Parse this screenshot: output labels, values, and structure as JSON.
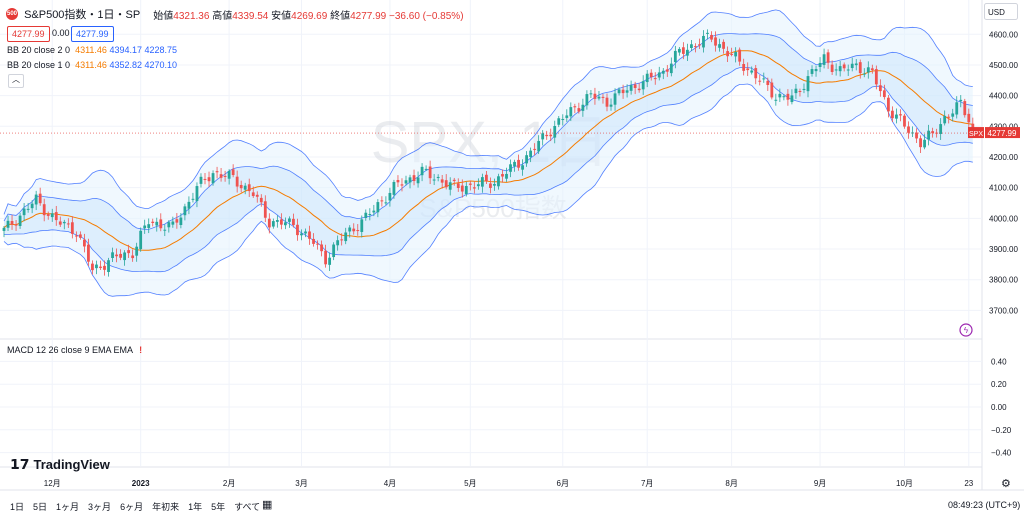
{
  "header": {
    "badge": "500",
    "symbol": "S&P500指数・1日・SP",
    "open_label": "始値",
    "open": "4321.36",
    "high_label": "高値",
    "high": "4339.54",
    "low_label": "安値",
    "low": "4269.69",
    "close_label": "終値",
    "close": "4277.99",
    "change": "−36.60 (−0.85%)",
    "bid": "4277.99",
    "spread": "0.00",
    "ask": "4277.99"
  },
  "indicators": [
    {
      "label": "BB 20 close 2 0",
      "basis": "4311.46",
      "upper": "4394.17",
      "lower": "4228.75"
    },
    {
      "label": "BB 20 close 1 0",
      "basis": "4311.46",
      "upper": "4352.82",
      "lower": "4270.10"
    }
  ],
  "collapse_icon": "chevron-up-icon",
  "watermark": {
    "symbol": "SPX, 1日",
    "name": "S&P500指数"
  },
  "macd_label": "MACD 12 26 close 9 EMA EMA",
  "macd_warning": "!",
  "brand": "TradingView",
  "currency": "USD",
  "price_tag": {
    "symbol": "SPX",
    "value": "4277.99"
  },
  "timeframes": [
    "1日",
    "5日",
    "1ヶ月",
    "3ヶ月",
    "6ヶ月",
    "年初来",
    "1年",
    "5年",
    "すべて"
  ],
  "clock": "08:49:23 (UTC+9)",
  "colors": {
    "up": "#26a69a",
    "down": "#ef5350",
    "band_outer": "#2962ff",
    "basis": "#f57c00",
    "fill": "#e3f2fd"
  },
  "chart_data": {
    "type": "candlestick",
    "title": "",
    "y_ticks": [
      3700,
      3800,
      3900,
      4000,
      4100,
      4200,
      4300,
      4400,
      4500,
      4600
    ],
    "ylim": [
      3610,
      4640
    ],
    "macd_ticks": [
      "0.40",
      "0.20",
      "0.00",
      "−0.20",
      "−0.40"
    ],
    "macd_ylim": [
      -0.5,
      0.5
    ],
    "x_ticks": [
      "12月",
      "2023",
      "2月",
      "3月",
      "4月",
      "5月",
      "6月",
      "7月",
      "8月",
      "9月",
      "10月",
      "23"
    ],
    "x_tick_index": [
      12,
      34,
      56,
      74,
      96,
      116,
      139,
      160,
      181,
      203,
      224,
      240
    ],
    "bars_shown": 242,
    "close_anchors": [
      [
        0,
        3960
      ],
      [
        8,
        4060
      ],
      [
        13,
        3990
      ],
      [
        18,
        3960
      ],
      [
        22,
        3830
      ],
      [
        27,
        3870
      ],
      [
        32,
        3890
      ],
      [
        36,
        3990
      ],
      [
        42,
        3970
      ],
      [
        48,
        4100
      ],
      [
        52,
        4150
      ],
      [
        57,
        4130
      ],
      [
        62,
        4080
      ],
      [
        66,
        3990
      ],
      [
        72,
        3980
      ],
      [
        77,
        3920
      ],
      [
        80,
        3870
      ],
      [
        85,
        3950
      ],
      [
        90,
        4000
      ],
      [
        94,
        4060
      ],
      [
        98,
        4110
      ],
      [
        104,
        4150
      ],
      [
        108,
        4130
      ],
      [
        112,
        4100
      ],
      [
        118,
        4110
      ],
      [
        122,
        4120
      ],
      [
        127,
        4170
      ],
      [
        130,
        4200
      ],
      [
        136,
        4290
      ],
      [
        142,
        4360
      ],
      [
        146,
        4400
      ],
      [
        150,
        4380
      ],
      [
        155,
        4420
      ],
      [
        160,
        4450
      ],
      [
        164,
        4480
      ],
      [
        168,
        4540
      ],
      [
        172,
        4570
      ],
      [
        176,
        4590
      ],
      [
        180,
        4540
      ],
      [
        184,
        4500
      ],
      [
        188,
        4450
      ],
      [
        192,
        4400
      ],
      [
        196,
        4390
      ],
      [
        200,
        4460
      ],
      [
        204,
        4520
      ],
      [
        208,
        4480
      ],
      [
        212,
        4500
      ],
      [
        216,
        4470
      ],
      [
        220,
        4360
      ],
      [
        224,
        4300
      ],
      [
        228,
        4250
      ],
      [
        231,
        4270
      ],
      [
        234,
        4330
      ],
      [
        238,
        4370
      ],
      [
        242,
        4280
      ]
    ],
    "last_price": 4277.99
  }
}
